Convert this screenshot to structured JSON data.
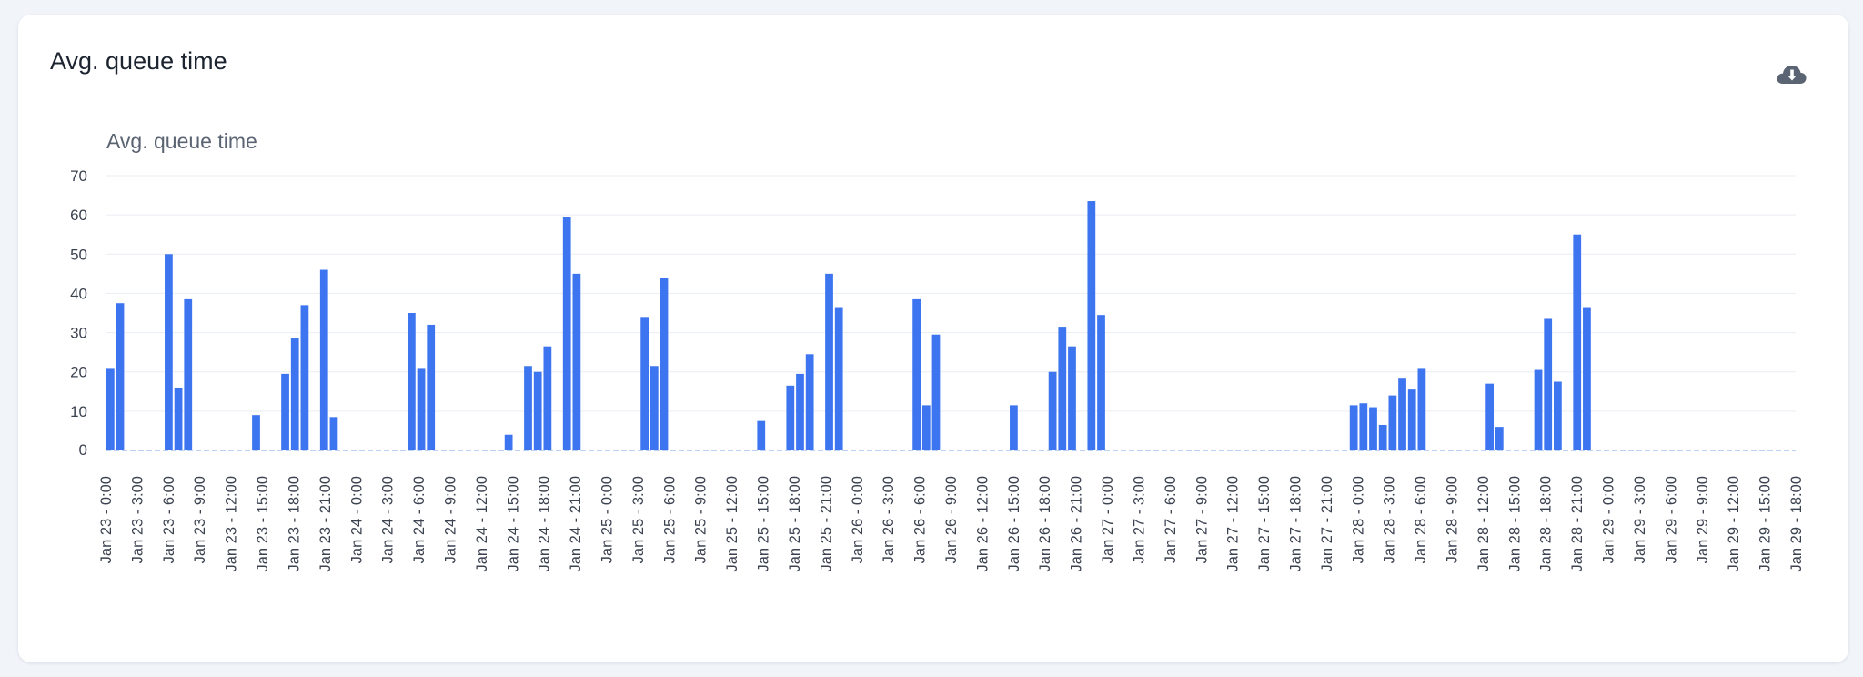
{
  "card": {
    "title": "Avg. queue time",
    "download_icon": "cloud-download-icon"
  },
  "colors": {
    "bar": "#3d75f0",
    "grid": "#e9edf2",
    "baseline": "#a9c1ef",
    "card_bg": "#ffffff",
    "page_bg": "#f1f4f9"
  },
  "chart_data": {
    "type": "bar",
    "title": "Avg. queue time",
    "xlabel": "",
    "ylabel": "",
    "ylim": [
      0,
      70
    ],
    "yticks": [
      0,
      10,
      20,
      30,
      40,
      50,
      60,
      70
    ],
    "grid": true,
    "legend": "none",
    "x_tick_labels": [
      "Jan 23 - 0:00",
      "Jan 23 - 3:00",
      "Jan 23 - 6:00",
      "Jan 23 - 9:00",
      "Jan 23 - 12:00",
      "Jan 23 - 15:00",
      "Jan 23 - 18:00",
      "Jan 23 - 21:00",
      "Jan 24 - 0:00",
      "Jan 24 - 3:00",
      "Jan 24 - 6:00",
      "Jan 24 - 9:00",
      "Jan 24 - 12:00",
      "Jan 24 - 15:00",
      "Jan 24 - 18:00",
      "Jan 24 - 21:00",
      "Jan 25 - 0:00",
      "Jan 25 - 3:00",
      "Jan 25 - 6:00",
      "Jan 25 - 9:00",
      "Jan 25 - 12:00",
      "Jan 25 - 15:00",
      "Jan 25 - 18:00",
      "Jan 25 - 21:00",
      "Jan 26 - 0:00",
      "Jan 26 - 3:00",
      "Jan 26 - 6:00",
      "Jan 26 - 9:00",
      "Jan 26 - 12:00",
      "Jan 26 - 15:00",
      "Jan 26 - 18:00",
      "Jan 26 - 21:00",
      "Jan 27 - 0:00",
      "Jan 27 - 3:00",
      "Jan 27 - 6:00",
      "Jan 27 - 9:00",
      "Jan 27 - 12:00",
      "Jan 27 - 15:00",
      "Jan 27 - 18:00",
      "Jan 27 - 21:00",
      "Jan 28 - 0:00",
      "Jan 28 - 3:00",
      "Jan 28 - 6:00",
      "Jan 28 - 9:00",
      "Jan 28 - 12:00",
      "Jan 28 - 15:00",
      "Jan 28 - 18:00",
      "Jan 28 - 21:00",
      "Jan 29 - 0:00",
      "Jan 29 - 3:00",
      "Jan 29 - 6:00",
      "Jan 29 - 9:00",
      "Jan 29 - 12:00",
      "Jan 29 - 15:00",
      "Jan 29 - 18:00"
    ],
    "values": [
      21,
      37.5,
      0,
      0,
      0,
      0,
      50,
      16,
      38.5,
      0,
      0,
      0,
      0,
      0,
      0,
      9,
      0,
      0,
      19.5,
      28.5,
      37,
      0,
      46,
      8.5,
      0,
      0,
      0,
      0,
      0,
      0,
      0,
      35,
      21,
      32,
      0,
      0,
      0,
      0,
      0,
      0,
      0,
      4,
      0,
      21.5,
      20,
      26.5,
      0,
      59.5,
      45,
      0,
      0,
      0,
      0,
      0,
      0,
      34,
      21.5,
      44,
      0,
      0,
      0,
      0,
      0,
      0,
      0,
      0,
      0,
      7.5,
      0,
      0,
      16.5,
      19.5,
      24.5,
      0,
      45,
      36.5,
      0,
      0,
      0,
      0,
      0,
      0,
      0,
      38.5,
      11.5,
      29.5,
      0,
      0,
      0,
      0,
      0,
      0,
      0,
      11.5,
      0,
      0,
      0,
      20,
      31.5,
      26.5,
      0,
      63.5,
      34.5,
      0,
      0,
      0,
      0,
      0,
      0,
      0,
      0,
      0,
      0,
      0,
      0,
      0,
      0,
      0,
      0,
      0,
      0,
      0,
      0,
      0,
      0,
      0,
      0,
      0,
      11.5,
      12,
      11,
      6.5,
      14,
      18.5,
      15.5,
      21,
      0,
      0,
      0,
      0,
      0,
      0,
      17,
      6,
      0,
      0,
      0,
      20.5,
      33.5,
      17.5,
      0,
      55,
      36.5,
      0,
      0,
      0,
      0,
      0,
      0,
      0,
      0,
      0,
      0,
      0,
      0,
      0,
      0,
      0,
      0,
      0,
      0,
      0,
      0,
      0
    ]
  }
}
